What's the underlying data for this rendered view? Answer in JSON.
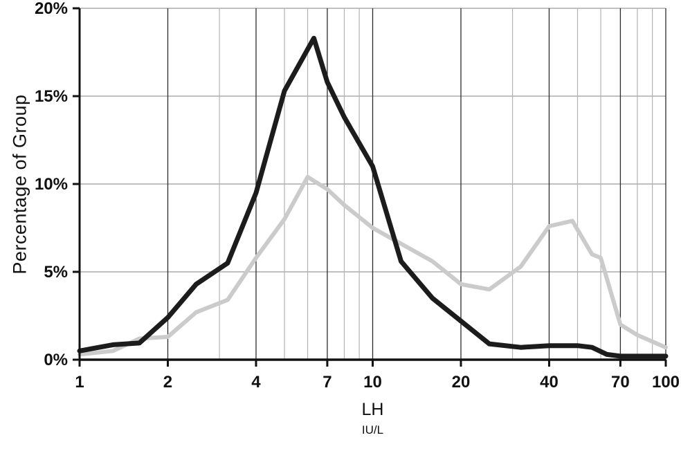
{
  "chart": {
    "y_axis_label": "Percentage of Group",
    "x_axis_label": "LH",
    "x_axis_sublabel": "IU/L"
  },
  "colors": {
    "axis": "#111111",
    "major_grid": "#2b2b2b",
    "minor_grid": "#b3b3b3",
    "horizontal_grid": "#9a9a9a",
    "text": "#111111",
    "series_dark": "#1c1c1c",
    "series_light": "#cbcbcb"
  },
  "chart_data": {
    "type": "line",
    "title": "",
    "xlabel": "LH",
    "xlabel_units": "IU/L",
    "ylabel": "Percentage of Group",
    "x_scale": "log",
    "xlim": [
      1,
      100
    ],
    "ylim": [
      0,
      20
    ],
    "grid": "on",
    "legend": "none",
    "x_tick_labels": [
      "1",
      "2",
      "4",
      "7",
      "10",
      "20",
      "40",
      "70",
      "100"
    ],
    "x_tick_values": [
      1,
      2,
      4,
      7,
      10,
      20,
      40,
      70,
      100
    ],
    "x_gridlines_major": [
      2,
      4,
      7,
      10,
      20,
      40,
      70,
      100
    ],
    "x_gridlines_minor": [
      3,
      5,
      6,
      8,
      9,
      30,
      50,
      60,
      80,
      90
    ],
    "y_tick_labels": [
      "0%",
      "5%",
      "10%",
      "15%",
      "20%"
    ],
    "y_tick_values": [
      0,
      5,
      10,
      15,
      20
    ],
    "y_gridlines": [
      5,
      10,
      15,
      20
    ],
    "series": [
      {
        "name": "light-gray-group",
        "color_key": "series_light",
        "stroke_width": 6,
        "points": [
          [
            1,
            0.3
          ],
          [
            1.3,
            0.5
          ],
          [
            1.6,
            1.2
          ],
          [
            2,
            1.3
          ],
          [
            2.5,
            2.7
          ],
          [
            3.2,
            3.4
          ],
          [
            4,
            5.8
          ],
          [
            5,
            8.0
          ],
          [
            6,
            10.4
          ],
          [
            7,
            9.7
          ],
          [
            8,
            8.8
          ],
          [
            10,
            7.5
          ],
          [
            12.5,
            6.6
          ],
          [
            16,
            5.6
          ],
          [
            20,
            4.3
          ],
          [
            25,
            4.0
          ],
          [
            32,
            5.3
          ],
          [
            40,
            7.6
          ],
          [
            48,
            7.9
          ],
          [
            56,
            6.0
          ],
          [
            60,
            5.8
          ],
          [
            70,
            2.0
          ],
          [
            80,
            1.4
          ],
          [
            100,
            0.7
          ]
        ]
      },
      {
        "name": "black-group",
        "color_key": "series_dark",
        "stroke_width": 7,
        "points": [
          [
            1,
            0.5
          ],
          [
            1.3,
            0.85
          ],
          [
            1.6,
            0.95
          ],
          [
            2,
            2.4
          ],
          [
            2.5,
            4.3
          ],
          [
            3.2,
            5.5
          ],
          [
            4,
            9.5
          ],
          [
            5,
            15.3
          ],
          [
            6.3,
            18.3
          ],
          [
            7,
            15.8
          ],
          [
            8,
            13.8
          ],
          [
            10,
            11.0
          ],
          [
            12.5,
            5.6
          ],
          [
            16,
            3.5
          ],
          [
            20,
            2.2
          ],
          [
            25,
            0.9
          ],
          [
            32,
            0.7
          ],
          [
            40,
            0.8
          ],
          [
            50,
            0.8
          ],
          [
            56,
            0.7
          ],
          [
            63,
            0.3
          ],
          [
            70,
            0.2
          ],
          [
            80,
            0.2
          ],
          [
            100,
            0.2
          ]
        ]
      }
    ]
  }
}
